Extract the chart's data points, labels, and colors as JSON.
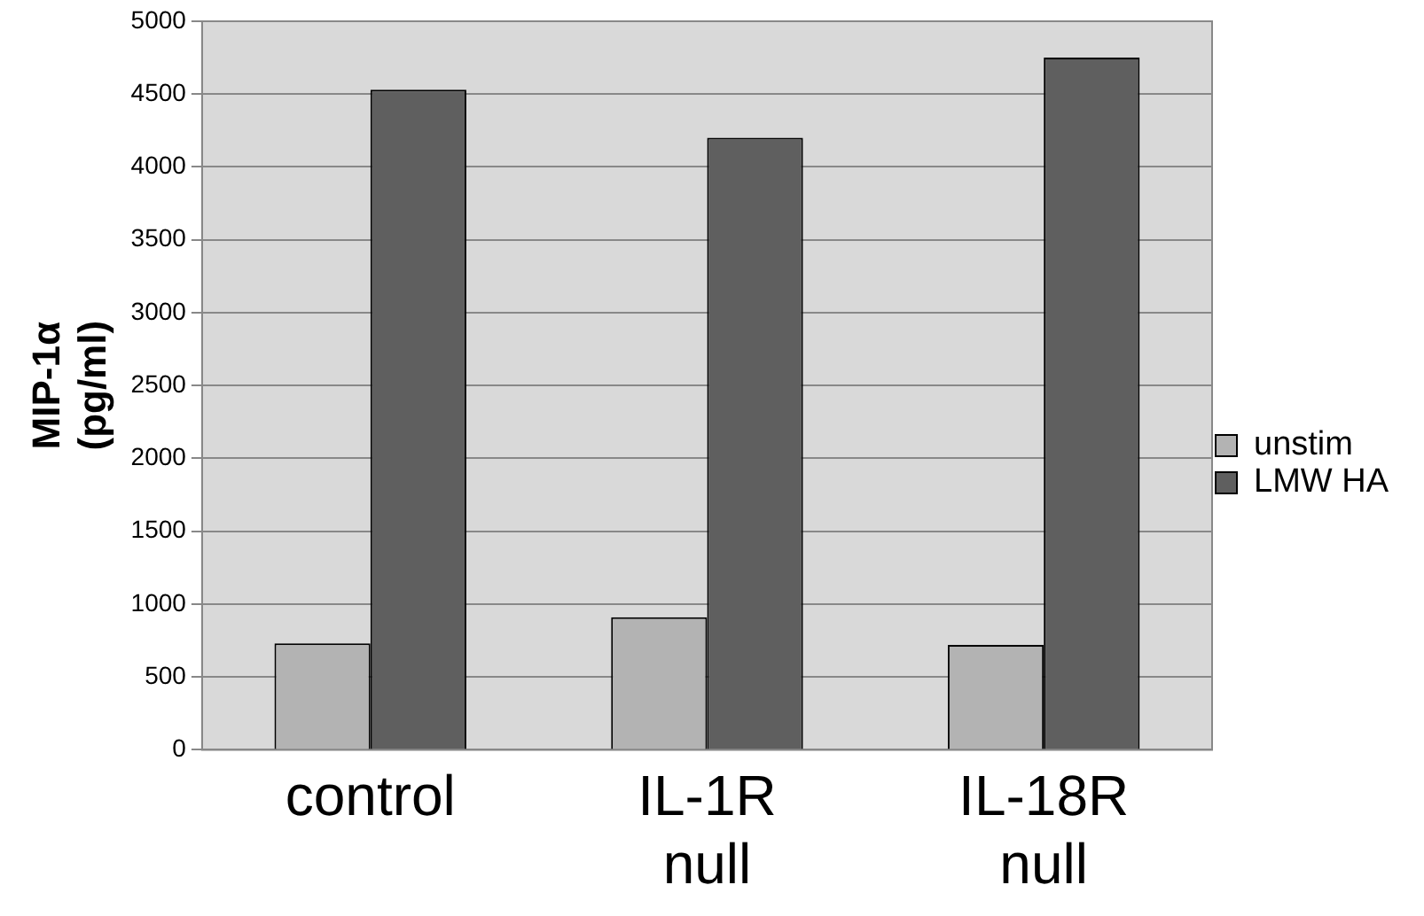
{
  "chart_data": {
    "type": "bar",
    "ylabel": "MIP-1α (pg/ml)",
    "categories": [
      "control",
      "IL-1R null",
      "IL-18R null"
    ],
    "series": [
      {
        "name": "unstim",
        "color": "#b3b3b3",
        "values": [
          730,
          910,
          720
        ]
      },
      {
        "name": "LMW HA",
        "color": "#5f5f5f",
        "values": [
          4530,
          4200,
          4750
        ]
      }
    ],
    "ylim": [
      0,
      5000
    ],
    "yticks": [
      0,
      500,
      1000,
      1500,
      2000,
      2500,
      3000,
      3500,
      4000,
      4500,
      5000
    ],
    "grid": "y",
    "legend": "right"
  }
}
